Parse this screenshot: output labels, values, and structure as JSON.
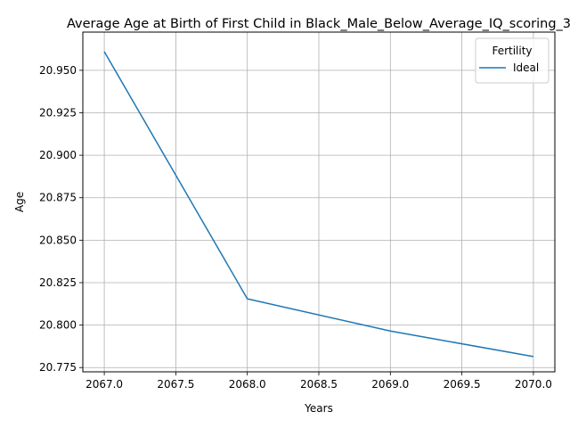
{
  "chart_data": {
    "type": "line",
    "title": "Average Age at Birth of First Child in Black_Male_Below_Average_IQ_scoring_3",
    "xlabel": "Years",
    "ylabel": "Age",
    "xlim": [
      2066.85,
      2070.15
    ],
    "ylim": [
      20.7725,
      20.9725
    ],
    "x_ticks": [
      2067.0,
      2067.5,
      2068.0,
      2068.5,
      2069.0,
      2069.5,
      2070.0
    ],
    "x_tick_labels": [
      "2067.0",
      "2067.5",
      "2068.0",
      "2068.5",
      "2069.0",
      "2069.5",
      "2070.0"
    ],
    "y_ticks": [
      20.775,
      20.8,
      20.825,
      20.85,
      20.875,
      20.9,
      20.925,
      20.95
    ],
    "y_tick_labels": [
      "20.775",
      "20.800",
      "20.825",
      "20.850",
      "20.875",
      "20.900",
      "20.925",
      "20.950"
    ],
    "grid": true,
    "legend": {
      "title": "Fertility",
      "placement": "top-right"
    },
    "series": [
      {
        "name": "Ideal",
        "color": "#1f77b4",
        "x": [
          2067,
          2068,
          2069,
          2070
        ],
        "y": [
          20.961,
          20.8155,
          20.7965,
          20.7815
        ]
      }
    ]
  }
}
